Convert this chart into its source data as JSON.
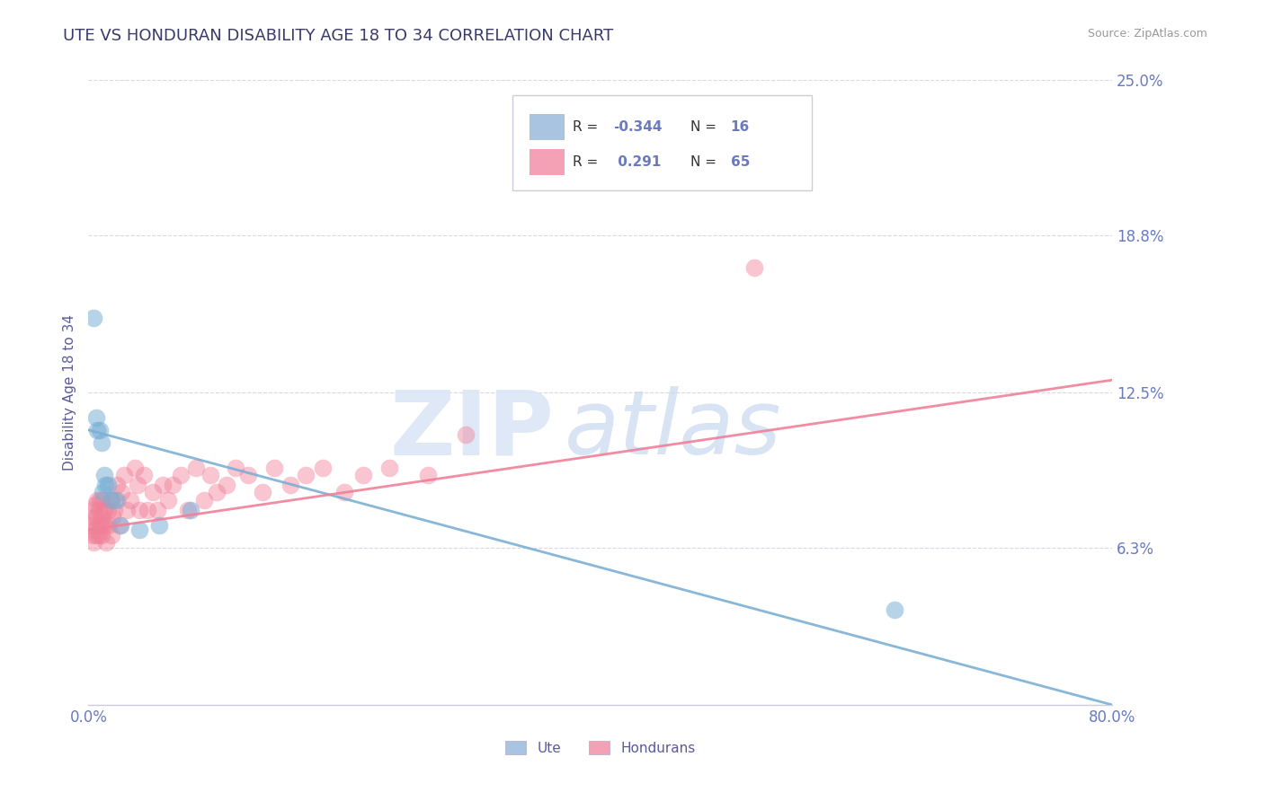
{
  "title": "UTE VS HONDURAN DISABILITY AGE 18 TO 34 CORRELATION CHART",
  "source": "Source: ZipAtlas.com",
  "ylabel": "Disability Age 18 to 34",
  "xlim": [
    0.0,
    0.8
  ],
  "ylim": [
    0.0,
    0.25
  ],
  "yticks": [
    0.0,
    0.063,
    0.125,
    0.188,
    0.25
  ],
  "ytick_labels": [
    "",
    "6.3%",
    "12.5%",
    "18.8%",
    "25.0%"
  ],
  "xticks": [
    0.0,
    0.2,
    0.4,
    0.6,
    0.8
  ],
  "xtick_labels": [
    "0.0%",
    "",
    "",
    "",
    "80.0%"
  ],
  "ute_R": -0.344,
  "ute_N": 16,
  "honduran_R": 0.291,
  "honduran_N": 65,
  "ute_color": "#a8c4e0",
  "honduran_color": "#f4a0b5",
  "ute_dot_color": "#7bafd4",
  "honduran_dot_color": "#f08098",
  "title_color": "#3a3a6a",
  "axis_label_color": "#5a5a9a",
  "tick_color": "#6a7ac0",
  "watermark_zip": "ZIP",
  "watermark_atlas": "atlas",
  "grid_color": "#d8d8e8",
  "background_color": "#ffffff",
  "legend_box_color": "#f0f4ff",
  "ute_x": [
    0.004,
    0.006,
    0.007,
    0.009,
    0.01,
    0.011,
    0.012,
    0.013,
    0.015,
    0.018,
    0.022,
    0.025,
    0.04,
    0.055,
    0.08,
    0.63
  ],
  "ute_y": [
    0.155,
    0.115,
    0.11,
    0.11,
    0.105,
    0.085,
    0.092,
    0.088,
    0.088,
    0.082,
    0.082,
    0.072,
    0.07,
    0.072,
    0.078,
    0.038
  ],
  "honduran_x": [
    0.002,
    0.003,
    0.003,
    0.004,
    0.004,
    0.005,
    0.005,
    0.006,
    0.006,
    0.007,
    0.007,
    0.008,
    0.008,
    0.009,
    0.009,
    0.01,
    0.01,
    0.011,
    0.011,
    0.012,
    0.013,
    0.014,
    0.015,
    0.016,
    0.017,
    0.018,
    0.019,
    0.02,
    0.021,
    0.022,
    0.024,
    0.026,
    0.028,
    0.03,
    0.033,
    0.036,
    0.038,
    0.04,
    0.043,
    0.046,
    0.05,
    0.054,
    0.058,
    0.062,
    0.066,
    0.072,
    0.078,
    0.084,
    0.09,
    0.095,
    0.1,
    0.108,
    0.115,
    0.125,
    0.136,
    0.145,
    0.158,
    0.17,
    0.183,
    0.2,
    0.215,
    0.235,
    0.265,
    0.295,
    0.52
  ],
  "honduran_y": [
    0.072,
    0.068,
    0.078,
    0.065,
    0.075,
    0.07,
    0.08,
    0.068,
    0.075,
    0.072,
    0.082,
    0.068,
    0.078,
    0.072,
    0.082,
    0.068,
    0.075,
    0.072,
    0.082,
    0.078,
    0.072,
    0.065,
    0.078,
    0.072,
    0.082,
    0.068,
    0.075,
    0.078,
    0.082,
    0.088,
    0.072,
    0.085,
    0.092,
    0.078,
    0.082,
    0.095,
    0.088,
    0.078,
    0.092,
    0.078,
    0.085,
    0.078,
    0.088,
    0.082,
    0.088,
    0.092,
    0.078,
    0.095,
    0.082,
    0.092,
    0.085,
    0.088,
    0.095,
    0.092,
    0.085,
    0.095,
    0.088,
    0.092,
    0.095,
    0.085,
    0.092,
    0.095,
    0.092,
    0.108,
    0.175
  ]
}
